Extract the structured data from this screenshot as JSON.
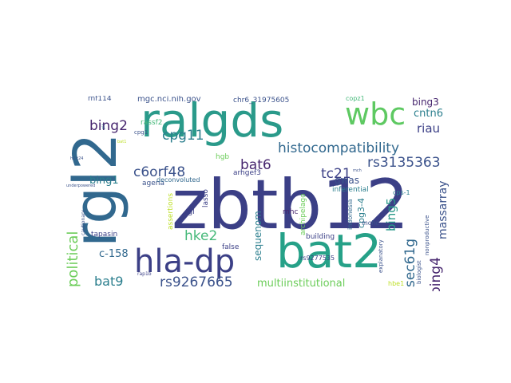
{
  "palette": {
    "navy": "#3b3f86",
    "purple": "#46256e",
    "teal": "#27908d",
    "blue": "#31688e",
    "green": "#3fbc73",
    "lightgreen": "#6ccd5a",
    "yellow": "#bddf26",
    "gray": "#5a5a8a"
  },
  "words": [
    {
      "text": "zbtb12",
      "color": "#3b3f86"
    },
    {
      "text": "rgl2",
      "color": "#31688e"
    },
    {
      "text": "ralgds",
      "color": "#2a9a8a"
    },
    {
      "text": "bat2",
      "color": "#26a188"
    },
    {
      "text": "hla-dp",
      "color": "#3b3f86"
    },
    {
      "text": "wbc",
      "color": "#5ec962"
    },
    {
      "text": "histocompatibility",
      "color": "#31688e"
    },
    {
      "text": "rs3135363",
      "color": "#3b528b"
    },
    {
      "text": "rs9267665",
      "color": "#3b528b"
    },
    {
      "text": "c6orf48",
      "color": "#3b528b"
    },
    {
      "text": "cpg11",
      "color": "#2c7f8e"
    },
    {
      "text": "bing2",
      "color": "#46256e"
    },
    {
      "text": "bat6",
      "color": "#46256e"
    },
    {
      "text": "tc21",
      "color": "#3b3f86"
    },
    {
      "text": "hke2",
      "color": "#46b97a"
    },
    {
      "text": "political",
      "color": "#6ccd5a"
    },
    {
      "text": "bat9",
      "color": "#2c7f8e"
    },
    {
      "text": "sec61g",
      "color": "#31688e"
    },
    {
      "text": "bing4",
      "color": "#46256e"
    },
    {
      "text": "bing5",
      "color": "#2a9a8a"
    },
    {
      "text": "riau",
      "color": "#3b3f86"
    },
    {
      "text": "cntn6",
      "color": "#2c7f8e"
    },
    {
      "text": "bing3",
      "color": "#46256e"
    },
    {
      "text": "bing1",
      "color": "#2c7f8e"
    },
    {
      "text": "c-158",
      "color": "#31688e"
    },
    {
      "text": "massarray",
      "color": "#3b528b"
    },
    {
      "text": "multiinstitutional",
      "color": "#6ccd5a"
    },
    {
      "text": "sequenom",
      "color": "#2c7f8e"
    },
    {
      "text": "cpg3-4",
      "color": "#2c7f8e"
    },
    {
      "text": "gwas",
      "color": "#3b528b"
    },
    {
      "text": "mgc.nci.nih.gov",
      "color": "#3b528b"
    },
    {
      "text": "chr6_31975605",
      "color": "#3b528b"
    },
    {
      "text": "rnf114",
      "color": "#3b528b"
    },
    {
      "text": "copz1",
      "color": "#46b97a"
    },
    {
      "text": "rassf2",
      "color": "#46b97a"
    },
    {
      "text": "hgb",
      "color": "#6ccd5a"
    },
    {
      "text": "agena",
      "color": "#3b528b"
    },
    {
      "text": "deconvoluted",
      "color": "#31688e"
    },
    {
      "text": "arhgef3",
      "color": "#3b3f86"
    },
    {
      "text": "lasso",
      "color": "#3b3f86"
    },
    {
      "text": "rgl",
      "color": "#3b3f86"
    },
    {
      "text": "false",
      "color": "#3b3f86"
    },
    {
      "text": "inferential",
      "color": "#2c7f8e"
    },
    {
      "text": "cps-1",
      "color": "#2c7f8e"
    },
    {
      "text": "mhc",
      "color": "#46256e"
    },
    {
      "text": "archipelago",
      "color": "#6ccd5a"
    },
    {
      "text": "assertions",
      "color": "#bddf26"
    },
    {
      "text": "tapasin",
      "color": "#3b3f86"
    },
    {
      "text": "building",
      "color": "#3b3f86"
    },
    {
      "text": "mchc",
      "color": "#3b528b"
    },
    {
      "text": "indonesia",
      "color": "#31688e"
    },
    {
      "text": "explanatory",
      "color": "#3b528b"
    },
    {
      "text": "rs9277535",
      "color": "#3b3f86"
    },
    {
      "text": "biologist",
      "color": "#3b528b"
    },
    {
      "text": "nonproductive",
      "color": "#3b528b"
    },
    {
      "text": "hbe1",
      "color": "#bddf26"
    },
    {
      "text": "rap1b",
      "color": "#3b3f86"
    },
    {
      "text": "cpg1",
      "color": "#3b528b"
    },
    {
      "text": "underpowered",
      "color": "#3b528b"
    },
    {
      "text": "cautionary",
      "color": "#3b528b"
    },
    {
      "text": "pit",
      "color": "#31688e"
    },
    {
      "text": "h2-t24",
      "color": "#3b528b"
    },
    {
      "text": "bat1",
      "color": "#bddf26"
    },
    {
      "text": "mch",
      "color": "#3b528b"
    }
  ]
}
